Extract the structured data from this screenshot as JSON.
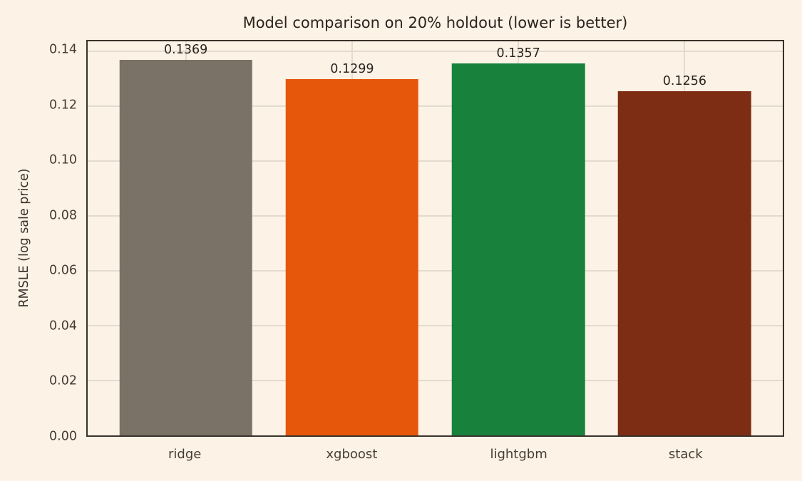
{
  "chart_data": {
    "type": "bar",
    "title": "Model comparison on 20% holdout (lower is better)",
    "xlabel": "",
    "ylabel": "RMSLE (log sale price)",
    "categories": [
      "ridge",
      "xgboost",
      "lightgbm",
      "stack"
    ],
    "values": [
      0.1369,
      0.1299,
      0.1357,
      0.1256
    ],
    "value_labels": [
      "0.1369",
      "0.1299",
      "0.1357",
      "0.1256"
    ],
    "bar_colors": [
      "#7a7167",
      "#e6570b",
      "#18813c",
      "#7d2d14"
    ],
    "bar_width_units": 0.8,
    "xlim": [
      -0.59,
      3.59
    ],
    "ylim": [
      0,
      0.1437
    ],
    "ytick_values": [
      0,
      0.02,
      0.04,
      0.06,
      0.08,
      0.1,
      0.12,
      0.14
    ],
    "ytick_labels": [
      "0.00",
      "0.02",
      "0.04",
      "0.06",
      "0.08",
      "0.10",
      "0.12",
      "0.14"
    ],
    "grid": true,
    "legend": "none",
    "colors": {
      "background": "#fdf2e6",
      "grid": "#e3dbd0",
      "spine": "#3a322a",
      "tick_text": "#453c33",
      "label_text": "#3a332c",
      "title_text": "#2b241e",
      "value_text": "#2b241e"
    }
  }
}
